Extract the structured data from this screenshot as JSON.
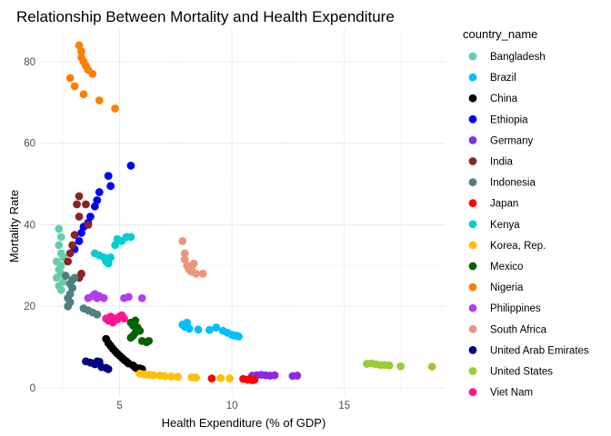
{
  "chart_data": {
    "type": "scatter",
    "title": "Relationship Between Mortality and Health Expenditure",
    "xlabel": "Health Expenditure (% of GDP)",
    "ylabel": "Mortality Rate",
    "xlim": [
      1.5,
      19.5
    ],
    "ylim": [
      -2,
      88
    ],
    "x_ticks": [
      5,
      10,
      15
    ],
    "y_ticks": [
      0,
      20,
      40,
      60,
      80
    ],
    "grid": true,
    "legend_title": "country_name",
    "legend_position": "right",
    "series": [
      {
        "name": "Bangladesh",
        "color": "#66CDAA",
        "points": [
          [
            2.3,
            39
          ],
          [
            2.4,
            37
          ],
          [
            2.3,
            35
          ],
          [
            2.4,
            33
          ],
          [
            2.2,
            31
          ],
          [
            2.3,
            29
          ],
          [
            2.2,
            27
          ],
          [
            2.3,
            25
          ],
          [
            2.4,
            24
          ],
          [
            2.5,
            26
          ],
          [
            2.4,
            28
          ],
          [
            2.4,
            30
          ],
          [
            2.5,
            32
          ]
        ]
      },
      {
        "name": "Brazil",
        "color": "#00BFFF",
        "points": [
          [
            7.8,
            15.5
          ],
          [
            8.0,
            16
          ],
          [
            7.9,
            15
          ],
          [
            8.1,
            14.5
          ],
          [
            8.5,
            14.3
          ],
          [
            9.0,
            14.2
          ],
          [
            9.3,
            14.8
          ],
          [
            9.6,
            14
          ],
          [
            9.8,
            13.5
          ],
          [
            10.0,
            13
          ],
          [
            10.2,
            12.8
          ],
          [
            10.3,
            12.6
          ],
          [
            10.1,
            12.8
          ]
        ]
      },
      {
        "name": "China",
        "color": "#000000",
        "points": [
          [
            4.4,
            12
          ],
          [
            4.5,
            11
          ],
          [
            4.6,
            10.3
          ],
          [
            4.7,
            9.6
          ],
          [
            4.8,
            9
          ],
          [
            4.9,
            8.4
          ],
          [
            5.0,
            7.9
          ],
          [
            5.1,
            7.4
          ],
          [
            5.2,
            6.9
          ],
          [
            5.3,
            6.5
          ],
          [
            5.4,
            6
          ],
          [
            5.6,
            5.5
          ],
          [
            5.7,
            5
          ],
          [
            5.8,
            4.7
          ],
          [
            5.9,
            4.8
          ],
          [
            6.0,
            4.6
          ]
        ]
      },
      {
        "name": "Ethiopia",
        "color": "#0000FF",
        "points": [
          [
            3.0,
            34
          ],
          [
            3.2,
            36
          ],
          [
            3.3,
            38
          ],
          [
            3.4,
            39.5
          ],
          [
            3.6,
            40.5
          ],
          [
            3.7,
            42
          ],
          [
            3.9,
            44.5
          ],
          [
            4.0,
            46
          ],
          [
            4.1,
            48
          ],
          [
            4.5,
            52
          ],
          [
            4.6,
            49.5
          ],
          [
            5.5,
            54.5
          ]
        ]
      },
      {
        "name": "Germany",
        "color": "#8A2BE2",
        "points": [
          [
            10.9,
            3
          ],
          [
            11.1,
            3.1
          ],
          [
            11.3,
            3.2
          ],
          [
            11.5,
            3.1
          ],
          [
            11.7,
            3
          ],
          [
            11.9,
            3.1
          ],
          [
            12.7,
            2.9
          ],
          [
            12.9,
            3
          ]
        ]
      },
      {
        "name": "India",
        "color": "#8B2323",
        "points": [
          [
            2.7,
            31
          ],
          [
            2.8,
            33
          ],
          [
            2.9,
            35
          ],
          [
            3.0,
            37.5
          ],
          [
            3.2,
            42
          ],
          [
            3.1,
            45
          ],
          [
            3.2,
            47
          ],
          [
            3.5,
            45
          ],
          [
            3.6,
            40
          ],
          [
            3.3,
            28
          ],
          [
            3.2,
            27
          ]
        ]
      },
      {
        "name": "Indonesia",
        "color": "#4F7F7F",
        "points": [
          [
            2.7,
            20
          ],
          [
            2.8,
            21
          ],
          [
            2.7,
            22
          ],
          [
            2.8,
            23
          ],
          [
            2.9,
            24.5
          ],
          [
            2.8,
            25.5
          ],
          [
            2.9,
            26.5
          ],
          [
            3.0,
            27
          ],
          [
            2.6,
            27.5
          ],
          [
            3.4,
            19.5
          ],
          [
            3.6,
            19
          ],
          [
            3.8,
            18.5
          ],
          [
            4.0,
            18
          ]
        ]
      },
      {
        "name": "Japan",
        "color": "#FF0000",
        "points": [
          [
            9.1,
            2.3
          ],
          [
            10.5,
            2.2
          ],
          [
            10.7,
            2
          ],
          [
            10.8,
            2.1
          ],
          [
            10.9,
            1.9
          ],
          [
            11.0,
            2
          ]
        ]
      },
      {
        "name": "Kenya",
        "color": "#00CED1",
        "points": [
          [
            3.9,
            33
          ],
          [
            4.1,
            32.5
          ],
          [
            4.3,
            32
          ],
          [
            4.4,
            31
          ],
          [
            4.5,
            30.5
          ],
          [
            4.6,
            32
          ],
          [
            4.8,
            35
          ],
          [
            4.9,
            36.5
          ],
          [
            5.1,
            36
          ],
          [
            5.3,
            37
          ],
          [
            5.5,
            37
          ]
        ]
      },
      {
        "name": "Korea, Rep.",
        "color": "#FFC000",
        "points": [
          [
            5.9,
            3.5
          ],
          [
            6.1,
            3.3
          ],
          [
            6.3,
            3.2
          ],
          [
            6.5,
            3.1
          ],
          [
            6.8,
            3
          ],
          [
            7.0,
            2.9
          ],
          [
            7.3,
            2.8
          ],
          [
            7.6,
            2.7
          ],
          [
            8.2,
            2.6
          ],
          [
            8.4,
            2.5
          ],
          [
            9.5,
            2.4
          ],
          [
            9.9,
            2.3
          ]
        ]
      },
      {
        "name": "Mexico",
        "color": "#006400",
        "points": [
          [
            5.5,
            16
          ],
          [
            5.6,
            15.3
          ],
          [
            5.7,
            16.5
          ],
          [
            5.8,
            14.8
          ],
          [
            5.9,
            14
          ],
          [
            5.7,
            13.5
          ],
          [
            5.6,
            12.8
          ],
          [
            5.5,
            12.3
          ],
          [
            6.0,
            11.5
          ],
          [
            6.2,
            11.2
          ],
          [
            6.3,
            11.5
          ]
        ]
      },
      {
        "name": "Nigeria",
        "color": "#FF7F00",
        "points": [
          [
            3.2,
            84
          ],
          [
            3.3,
            82.5
          ],
          [
            3.3,
            81
          ],
          [
            3.4,
            80
          ],
          [
            3.5,
            79
          ],
          [
            3.6,
            78
          ],
          [
            3.8,
            77
          ],
          [
            2.8,
            76
          ],
          [
            3.0,
            74
          ],
          [
            3.4,
            72
          ],
          [
            4.1,
            70.5
          ],
          [
            4.8,
            68.5
          ]
        ]
      },
      {
        "name": "Philippines",
        "color": "#B040F0",
        "points": [
          [
            3.6,
            22
          ],
          [
            3.8,
            22.5
          ],
          [
            3.9,
            23
          ],
          [
            4.1,
            22.5
          ],
          [
            4.3,
            22
          ],
          [
            4.0,
            22
          ],
          [
            5.2,
            22
          ],
          [
            5.4,
            22.3
          ],
          [
            6.0,
            22
          ]
        ]
      },
      {
        "name": "South Africa",
        "color": "#E9967A",
        "points": [
          [
            7.8,
            36
          ],
          [
            7.9,
            33
          ],
          [
            7.9,
            31.5
          ],
          [
            8.0,
            30
          ],
          [
            8.1,
            29
          ],
          [
            8.2,
            28.5
          ],
          [
            8.4,
            28
          ],
          [
            8.7,
            28
          ],
          [
            8.2,
            29.5
          ],
          [
            8.3,
            30.5
          ]
        ]
      },
      {
        "name": "United Arab Emirates",
        "color": "#000080",
        "points": [
          [
            3.5,
            6.5
          ],
          [
            3.7,
            6.2
          ],
          [
            3.9,
            5.8
          ],
          [
            4.0,
            6.5
          ],
          [
            4.1,
            6.4
          ],
          [
            4.2,
            5.1
          ],
          [
            4.4,
            4.9
          ],
          [
            4.5,
            4.6
          ]
        ]
      },
      {
        "name": "United States",
        "color": "#9ACD32",
        "points": [
          [
            16.0,
            5.9
          ],
          [
            16.2,
            6
          ],
          [
            16.4,
            5.8
          ],
          [
            16.6,
            5.6
          ],
          [
            16.8,
            5.6
          ],
          [
            17.0,
            5.5
          ],
          [
            17.5,
            5.3
          ],
          [
            18.9,
            5.2
          ]
        ]
      },
      {
        "name": "Viet Nam",
        "color": "#FF1493",
        "points": [
          [
            4.4,
            17
          ],
          [
            4.5,
            16.5
          ],
          [
            4.6,
            17.5
          ],
          [
            4.7,
            16
          ],
          [
            4.8,
            17
          ],
          [
            4.9,
            16.8
          ],
          [
            5.0,
            17.5
          ],
          [
            5.1,
            17.8
          ],
          [
            5.2,
            17
          ]
        ]
      }
    ]
  }
}
